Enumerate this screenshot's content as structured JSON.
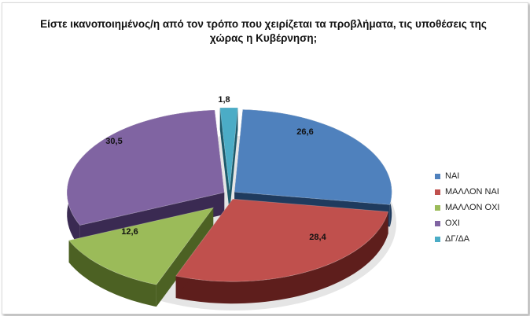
{
  "chart_data": {
    "type": "pie",
    "title": "Είστε ικανοποιημένος/η από τον τρόπο που χειρίζεται τα προβλήματα, τις υποθέσεις  της χώρας η Κυβέρνηση;",
    "title_lines": [
      "Είστε ικανοποιημένος/η από τον τρόπο που χειρίζεται τα προβλήματα, τις υποθέσεις  της",
      "χώρας η Κυβέρνηση;"
    ],
    "legend_placement": "right",
    "slices": [
      {
        "label": "ΝΑΙ",
        "value": 26.6,
        "value_label": "26,6",
        "color": "#4f81bd",
        "side_color": "#1f3b5e"
      },
      {
        "label": "ΜΑΛΛΟΝ ΝΑΙ",
        "value": 28.4,
        "value_label": "28,4",
        "color": "#c0504d",
        "side_color": "#5e1e1c"
      },
      {
        "label": "ΜΑΛΛΟΝ ΟΧΙ",
        "value": 12.6,
        "value_label": "12,6",
        "color": "#9bbb59",
        "side_color": "#4c6123"
      },
      {
        "label": "ΟΧΙ",
        "value": 30.5,
        "value_label": "30,5",
        "color": "#8064a2",
        "side_color": "#3a2a52"
      },
      {
        "label": "ΔΓ/ΔΑ",
        "value": 1.8,
        "value_label": "1,8",
        "color": "#4bacc6",
        "side_color": "#1d5a6b"
      }
    ]
  }
}
